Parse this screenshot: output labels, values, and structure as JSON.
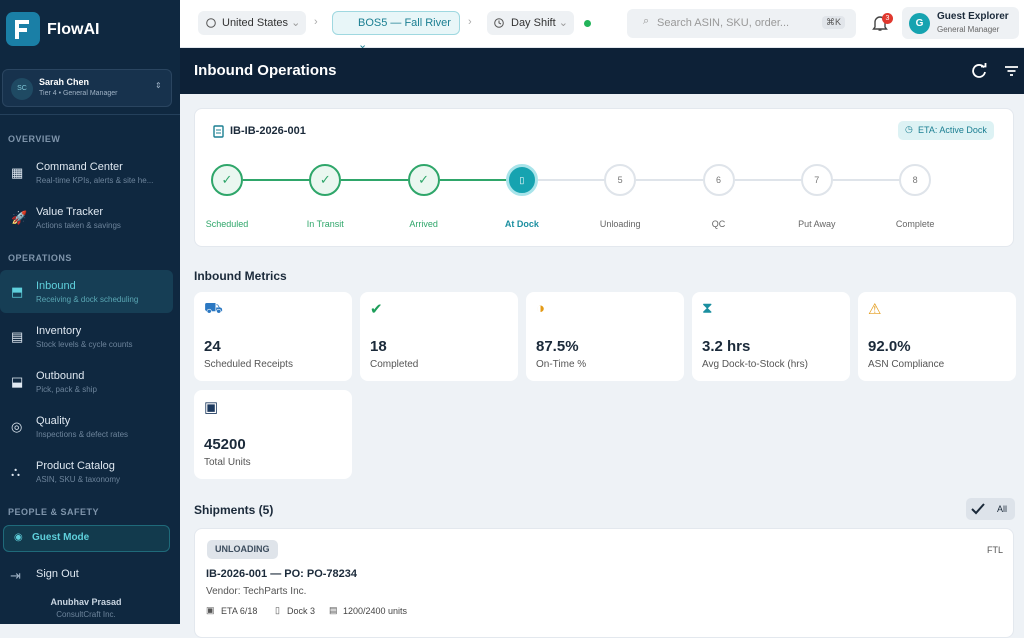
{
  "sidebar": {
    "brand": "FlowAI",
    "user": {
      "initials": "SC",
      "name": "Sarah Chen",
      "role": "Tier 4 • General Manager"
    },
    "sections": [
      {
        "label": "OVERVIEW",
        "items": [
          {
            "title": "Command Center",
            "subtitle": "Real-time KPIs, alerts & site he..."
          },
          {
            "title": "Value Tracker",
            "subtitle": "Actions taken & savings"
          }
        ]
      },
      {
        "label": "OPERATIONS",
        "items": [
          {
            "title": "Inbound",
            "subtitle": "Receiving & dock scheduling"
          },
          {
            "title": "Inventory",
            "subtitle": "Stock levels & cycle counts"
          },
          {
            "title": "Outbound",
            "subtitle": "Pick, pack & ship"
          },
          {
            "title": "Quality",
            "subtitle": "Inspections & defect rates"
          },
          {
            "title": "Product Catalog",
            "subtitle": "ASIN, SKU & taxonomy"
          }
        ]
      },
      {
        "label": "PEOPLE & SAFETY",
        "items": [
          {
            "title": "Guest Mode"
          }
        ]
      }
    ],
    "sign_out": "Sign Out",
    "footer": {
      "name": "Anubhav Prasad",
      "company": "ConsultCraft Inc."
    }
  },
  "topbar": {
    "region": "United States",
    "site": "BOS5 — Fall River",
    "shift": "Day Shift",
    "search_placeholder": "Search ASIN, SKU, order...",
    "shortcut": "⌘K",
    "notification_count": 3,
    "account": {
      "initial": "G",
      "name": "Guest Explorer",
      "role": "General Manager"
    }
  },
  "header": {
    "title": "Inbound Operations"
  },
  "tracker": {
    "id": "IB-IB-2026-001",
    "eta": "ETA: Active Dock",
    "steps": [
      {
        "label": "Scheduled"
      },
      {
        "label": "In Transit"
      },
      {
        "label": "Arrived"
      },
      {
        "label": "At Dock"
      },
      {
        "number": 5,
        "label": "Unloading"
      },
      {
        "number": 6,
        "label": "QC"
      },
      {
        "number": 7,
        "label": "Put Away"
      },
      {
        "number": 8,
        "label": "Complete"
      }
    ]
  },
  "metrics": {
    "title": "Inbound Metrics",
    "cards": [
      {
        "value": 24,
        "label": "Scheduled Receipts"
      },
      {
        "value": 18,
        "label": "Completed"
      },
      {
        "value": "87.5%",
        "label": "On-Time %"
      },
      {
        "value": "3.2 hrs",
        "label": "Avg Dock-to-Stock (hrs)"
      },
      {
        "value": "92.0%",
        "label": "ASN Compliance"
      },
      {
        "value": 45200,
        "label": "Total Units"
      }
    ]
  },
  "shipments": {
    "title": "Shipments (5)",
    "filter": "All",
    "items": [
      {
        "status": "UNLOADING",
        "mode": "FTL",
        "title": "IB-2026-001 — PO: PO-78234",
        "vendor": "Vendor: TechParts Inc.",
        "eta": "ETA 6/18",
        "dock": "Dock 3",
        "units": "1200/2400 units"
      }
    ]
  }
}
